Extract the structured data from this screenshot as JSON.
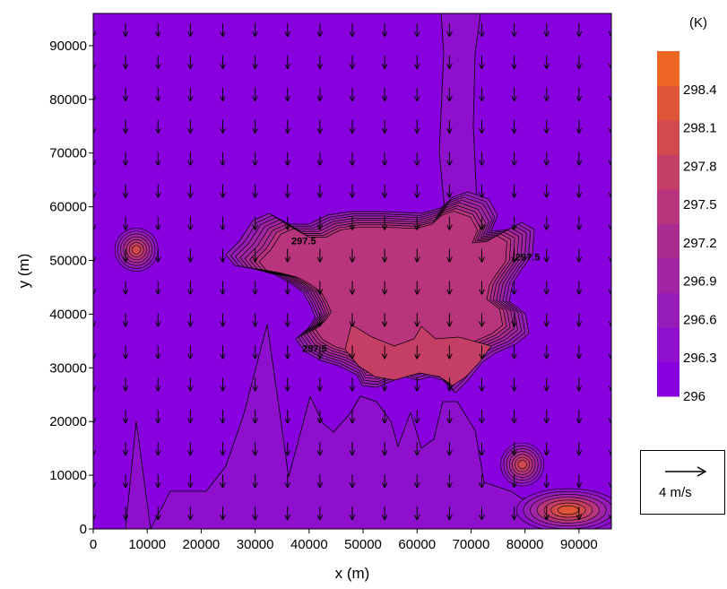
{
  "chart_data": {
    "type": "heatmap",
    "subtype": "filled-contour with wind vector field",
    "xlabel": "x (m)",
    "ylabel": "y (m)",
    "xlim": [
      0,
      96000
    ],
    "ylim": [
      0,
      96000
    ],
    "xticks": [
      0,
      10000,
      20000,
      30000,
      40000,
      50000,
      60000,
      70000,
      80000,
      90000
    ],
    "yticks": [
      0,
      10000,
      20000,
      30000,
      40000,
      50000,
      60000,
      70000,
      80000,
      90000
    ],
    "colorbar": {
      "unit_label": "(K)",
      "ticks": [
        296,
        296.3,
        296.6,
        296.9,
        297.2,
        297.5,
        297.8,
        298.1,
        298.4
      ],
      "range": [
        296,
        298.7
      ],
      "colors": [
        "#8800dd",
        "#8e10cc",
        "#961cb8",
        "#a024a4",
        "#ab2c90",
        "#b8347c",
        "#c53e66",
        "#d24a4e",
        "#e05438",
        "#ee6624"
      ]
    },
    "contour_labels": [
      {
        "text": "297.5",
        "x": 39000,
        "y": 53000
      },
      {
        "text": "297.5",
        "x": 80500,
        "y": 50000
      },
      {
        "text": "297.5",
        "x": 41000,
        "y": 33000
      }
    ],
    "regions": {
      "background": 296.1,
      "southern_band": 296.5,
      "warm_core": 297.6,
      "isolated_peaks": [
        {
          "x": 8000,
          "y": 52000,
          "peak": 298.0
        },
        {
          "x": 79500,
          "y": 12000,
          "peak": 298.0
        },
        {
          "x": 88000,
          "y": 3500,
          "peak": 298.3
        }
      ]
    },
    "vector_field": {
      "direction": "southward",
      "grid_spacing_m": 6000,
      "reference_vector": {
        "speed": 4,
        "label": "4 m/s"
      }
    }
  },
  "legend": {
    "unit": "(K)",
    "ref_label": "4 m/s"
  }
}
